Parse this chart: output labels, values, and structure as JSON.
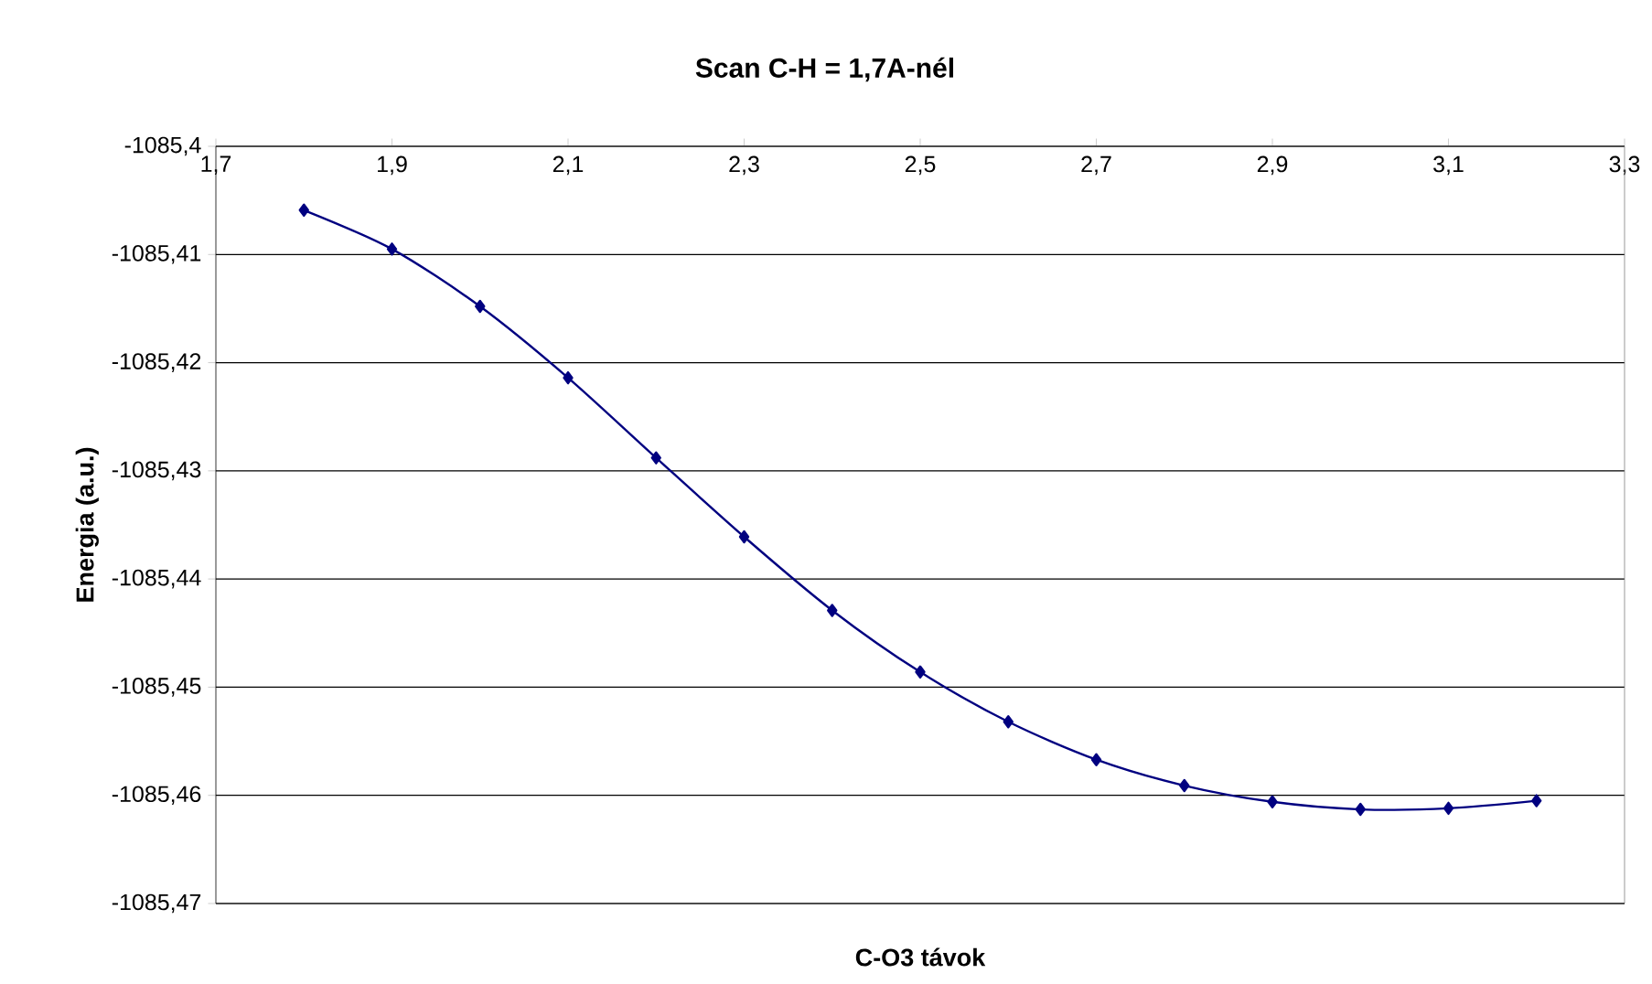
{
  "chart_data": {
    "type": "line",
    "title": "Scan C-H = 1,7A-nél",
    "xlabel": "C-O3 távok",
    "ylabel": "Energia (a.u.)",
    "x": [
      1.8,
      1.9,
      2.0,
      2.1,
      2.2,
      2.3,
      2.4,
      2.5,
      2.6,
      2.7,
      2.8,
      2.9,
      3.0,
      3.1,
      3.2
    ],
    "series": [
      {
        "color": "#000080",
        "values": [
          -1085.4059,
          -1085.4095,
          -1085.4148,
          -1085.4214,
          -1085.4288,
          -1085.4361,
          -1085.4429,
          -1085.4486,
          -1085.4532,
          -1085.4567,
          -1085.4591,
          -1085.4606,
          -1085.4613,
          -1085.4612,
          -1085.4605
        ]
      }
    ],
    "xlim": [
      1.7,
      3.3
    ],
    "xticks": [
      {
        "value": 1.7,
        "label": "1,7"
      },
      {
        "value": 1.9,
        "label": "1,9"
      },
      {
        "value": 2.1,
        "label": "2,1"
      },
      {
        "value": 2.3,
        "label": "2,3"
      },
      {
        "value": 2.5,
        "label": "2,5"
      },
      {
        "value": 2.7,
        "label": "2,7"
      },
      {
        "value": 2.9,
        "label": "2,9"
      },
      {
        "value": 3.1,
        "label": "3,1"
      },
      {
        "value": 3.3,
        "label": "3,3"
      }
    ],
    "ylim": [
      -1085.47,
      -1085.4
    ],
    "yticks": [
      {
        "value": -1085.47,
        "label": "-1085,47"
      },
      {
        "value": -1085.46,
        "label": "-1085,46"
      },
      {
        "value": -1085.45,
        "label": "-1085,45"
      },
      {
        "value": -1085.44,
        "label": "-1085,44"
      },
      {
        "value": -1085.43,
        "label": "-1085,43"
      },
      {
        "value": -1085.42,
        "label": "-1085,42"
      },
      {
        "value": -1085.41,
        "label": "-1085,41"
      },
      {
        "value": -1085.4,
        "label": "-1085,4"
      }
    ],
    "grid": "y",
    "marker": "diamond",
    "line_style": "solid"
  }
}
